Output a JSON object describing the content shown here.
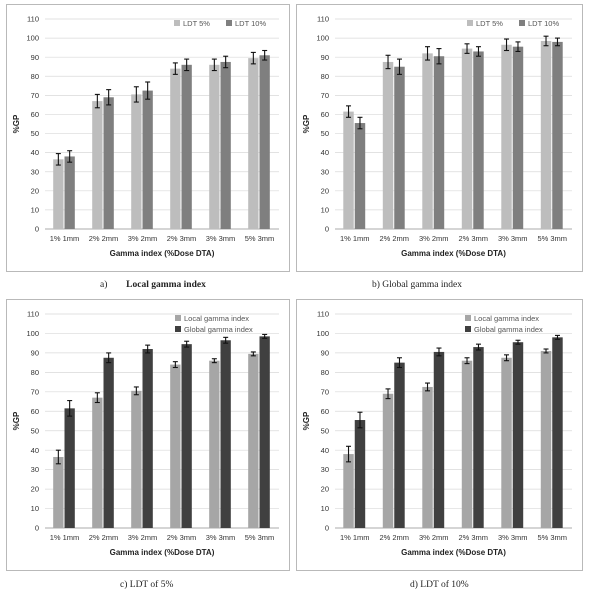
{
  "chart_data": [
    {
      "type": "bar",
      "panel_label": "a)",
      "caption": "Local gamma index",
      "categories": [
        "1% 1mm",
        "2% 2mm",
        "3% 2mm",
        "2% 3mm",
        "3% 3mm",
        "5% 3mm"
      ],
      "series": [
        {
          "name": "LDT 5%",
          "values": [
            36.5,
            67.0,
            70.5,
            84.0,
            86.0,
            89.5
          ],
          "errors": [
            3.0,
            3.5,
            4.0,
            3.0,
            3.0,
            3.0
          ]
        },
        {
          "name": "LDT 10%",
          "values": [
            38.0,
            69.0,
            72.5,
            86.0,
            87.5,
            91.0
          ],
          "errors": [
            3.0,
            4.0,
            4.5,
            3.0,
            3.0,
            2.5
          ]
        }
      ],
      "xlabel": "Gamma index (%Dose DTA)",
      "ylabel": "%GP",
      "ylim": [
        0,
        110
      ],
      "yticks": [
        0,
        10,
        20,
        30,
        40,
        50,
        60,
        70,
        80,
        90,
        100,
        110
      ],
      "legend": "top-right",
      "colors": [
        "#bdbdbd",
        "#7f7f7f"
      ]
    },
    {
      "type": "bar",
      "panel_label": "b)",
      "caption": "Global gamma index",
      "categories": [
        "1% 1mm",
        "2% 2mm",
        "3% 2mm",
        "2% 3mm",
        "3% 3mm",
        "5% 3mm"
      ],
      "series": [
        {
          "name": "LDT 5%",
          "values": [
            61.5,
            87.5,
            92.0,
            94.5,
            96.5,
            98.5
          ],
          "errors": [
            3.0,
            3.5,
            3.5,
            2.5,
            3.0,
            2.5
          ]
        },
        {
          "name": "LDT 10%",
          "values": [
            55.5,
            85.0,
            90.5,
            93.0,
            95.5,
            98.0
          ],
          "errors": [
            3.0,
            4.0,
            4.0,
            2.5,
            2.5,
            2.0
          ]
        }
      ],
      "xlabel": "Gamma index (%Dose DTA)",
      "ylabel": "%GP",
      "ylim": [
        0,
        110
      ],
      "yticks": [
        0,
        10,
        20,
        30,
        40,
        50,
        60,
        70,
        80,
        90,
        100,
        110
      ],
      "legend": "top-right",
      "colors": [
        "#bdbdbd",
        "#7f7f7f"
      ]
    },
    {
      "type": "bar",
      "panel_label": "c)",
      "caption": "LDT of 5%",
      "categories": [
        "1% 1mm",
        "2% 2mm",
        "3% 2mm",
        "2% 3mm",
        "3% 3mm",
        "5% 3mm"
      ],
      "series": [
        {
          "name": "Local gamma index",
          "values": [
            36.5,
            67.0,
            70.5,
            84.0,
            86.0,
            89.5
          ],
          "errors": [
            3.5,
            2.5,
            2.0,
            1.5,
            1.0,
            1.0
          ]
        },
        {
          "name": "Global gamma index",
          "values": [
            61.5,
            87.5,
            92.0,
            94.5,
            96.5,
            98.5
          ],
          "errors": [
            4.0,
            2.5,
            2.0,
            1.5,
            1.5,
            1.0
          ]
        }
      ],
      "xlabel": "Gamma index (%Dose DTA)",
      "ylabel": "%GP",
      "ylim": [
        0,
        110
      ],
      "yticks": [
        0,
        10,
        20,
        30,
        40,
        50,
        60,
        70,
        80,
        90,
        100,
        110
      ],
      "legend": "top-right",
      "colors": [
        "#a6a6a6",
        "#404040"
      ]
    },
    {
      "type": "bar",
      "panel_label": "d)",
      "caption": "LDT of 10%",
      "categories": [
        "1% 1mm",
        "2% 2mm",
        "3% 2mm",
        "2% 3mm",
        "3% 3mm",
        "5% 3mm"
      ],
      "series": [
        {
          "name": "Local gamma index",
          "values": [
            38.0,
            69.0,
            72.5,
            86.0,
            87.5,
            91.0
          ],
          "errors": [
            4.0,
            2.5,
            2.0,
            1.5,
            1.5,
            1.0
          ]
        },
        {
          "name": "Global gamma index",
          "values": [
            55.5,
            85.0,
            90.5,
            93.0,
            95.5,
            98.0
          ],
          "errors": [
            4.0,
            2.5,
            2.0,
            1.5,
            1.0,
            1.0
          ]
        }
      ],
      "xlabel": "Gamma index (%Dose DTA)",
      "ylabel": "%GP",
      "ylim": [
        0,
        110
      ],
      "yticks": [
        0,
        10,
        20,
        30,
        40,
        50,
        60,
        70,
        80,
        90,
        100,
        110
      ],
      "legend": "top-right",
      "colors": [
        "#a6a6a6",
        "#404040"
      ]
    }
  ]
}
